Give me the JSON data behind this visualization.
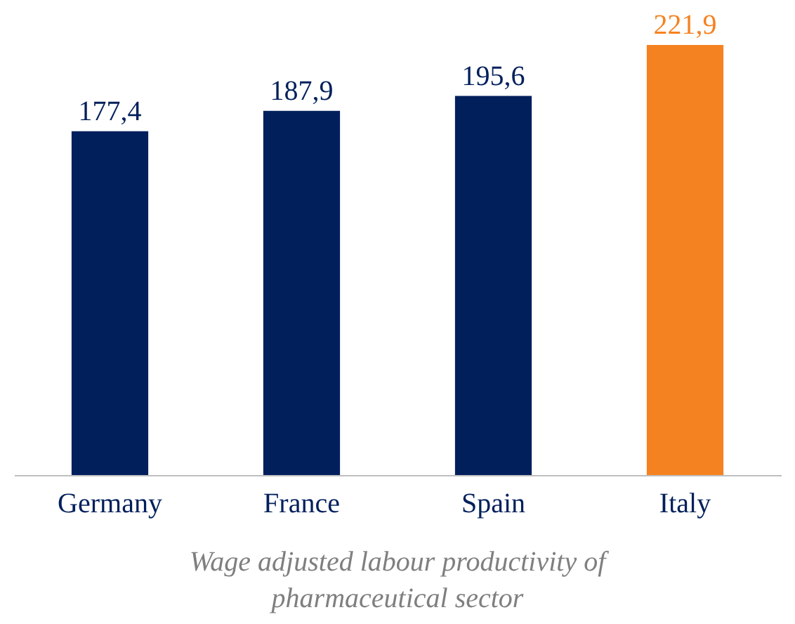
{
  "chart_data": {
    "type": "bar",
    "title": "Wage adjusted labour productivity of pharmaceutical sector",
    "categories": [
      "Germany",
      "France",
      "Spain",
      "Italy"
    ],
    "values": [
      177.4,
      187.9,
      195.6,
      221.9
    ],
    "value_labels": [
      "177,4",
      "187,9",
      "195,6",
      "221,9"
    ],
    "colors": [
      "#001f5b",
      "#001f5b",
      "#001f5b",
      "#f58220"
    ],
    "tick_labels": "x"
  }
}
